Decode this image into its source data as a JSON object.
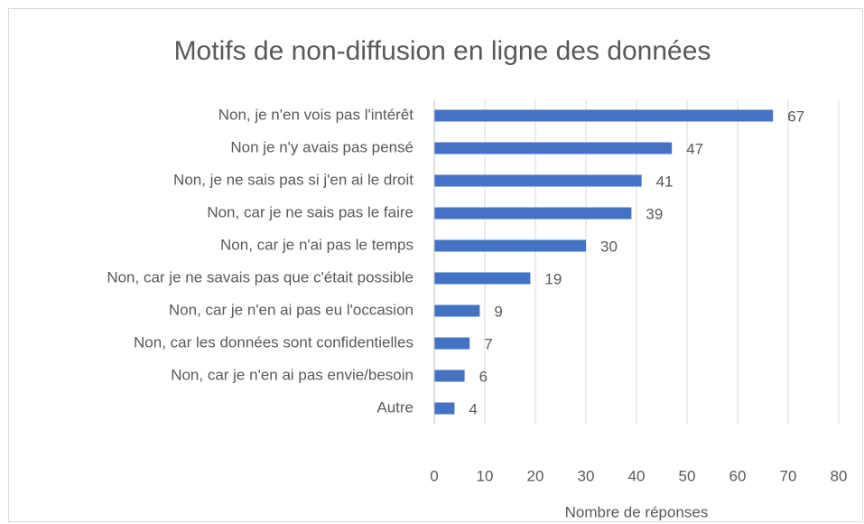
{
  "chart_data": {
    "type": "bar",
    "orientation": "horizontal",
    "title": "Motifs de non-diffusion en ligne des données",
    "xlabel": "Nombre de réponses",
    "categories": [
      "Non, je n'en vois pas l'intérêt",
      "Non je n'y avais pas pensé",
      "Non, je ne sais pas si j'en ai le droit",
      "Non, car je ne sais pas le faire",
      "Non, car je n'ai pas le temps",
      "Non, car je ne savais pas que c'était possible",
      "Non, car je n'en ai pas eu l'occasion",
      "Non, car les données sont confidentielles",
      "Non, car je n'en ai pas envie/besoin",
      "Autre"
    ],
    "values": [
      67,
      47,
      41,
      39,
      30,
      19,
      9,
      7,
      6,
      4
    ],
    "color": "#4472c4",
    "xlim": [
      0,
      80
    ],
    "xticks": [
      0,
      10,
      20,
      30,
      40,
      50,
      60,
      70,
      80
    ],
    "grid": true
  }
}
